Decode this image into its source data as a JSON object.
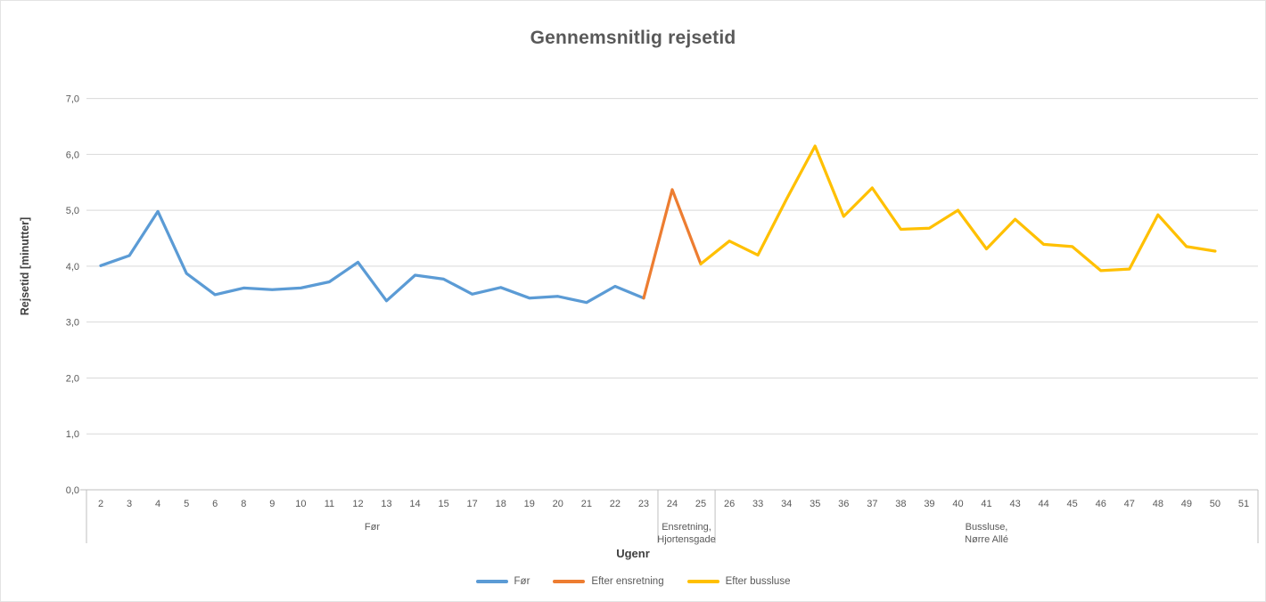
{
  "title": "Gennemsnitlig rejsetid",
  "colors": {
    "gridline": "#D9D9D9",
    "axis_line": "#BFBFBF",
    "tick_text": "#595959",
    "title_text": "#595959"
  },
  "chart_data": {
    "type": "line",
    "title": "Gennemsnitlig rejsetid",
    "xlabel": "Ugenr",
    "ylabel": "Rejsetid [minutter]",
    "ylim": [
      0,
      7
    ],
    "y_tick_step": 1,
    "y_tick_labels": [
      "0,0",
      "1,0",
      "2,0",
      "3,0",
      "4,0",
      "5,0",
      "6,0",
      "7,0"
    ],
    "grid": "horizontal",
    "legend_position": "bottom",
    "categories": [
      "2",
      "3",
      "4",
      "5",
      "6",
      "8",
      "9",
      "10",
      "11",
      "12",
      "13",
      "14",
      "15",
      "17",
      "18",
      "19",
      "20",
      "21",
      "22",
      "23",
      "24",
      "25",
      "26",
      "33",
      "34",
      "35",
      "36",
      "37",
      "38",
      "39",
      "40",
      "41",
      "43",
      "44",
      "45",
      "46",
      "47",
      "48",
      "49",
      "50",
      "51"
    ],
    "category_groups": [
      {
        "label_lines": [
          "Før"
        ],
        "from": "2",
        "to": "23"
      },
      {
        "label_lines": [
          "Ensretning,",
          "Hjortensgade"
        ],
        "from": "24",
        "to": "25"
      },
      {
        "label_lines": [
          "Bussluse,",
          "Nørre Allé"
        ],
        "from": "26",
        "to": "51"
      }
    ],
    "series": [
      {
        "name": "Før",
        "color": "#5B9BD5",
        "weeks": [
          "2",
          "3",
          "4",
          "5",
          "6",
          "8",
          "9",
          "10",
          "11",
          "12",
          "13",
          "14",
          "15",
          "17",
          "18",
          "19",
          "20",
          "21",
          "22",
          "23"
        ],
        "values": [
          4.01,
          4.19,
          4.98,
          3.87,
          3.49,
          3.61,
          3.58,
          3.61,
          3.72,
          4.07,
          3.38,
          3.84,
          3.77,
          3.5,
          3.62,
          3.43,
          3.46,
          3.35,
          3.64,
          3.43
        ]
      },
      {
        "name": "Efter ensretning",
        "color": "#ED7D31",
        "weeks": [
          "23",
          "24",
          "25"
        ],
        "values": [
          3.43,
          5.37,
          4.04
        ]
      },
      {
        "name": "Efter bussluse",
        "color": "#FFC000",
        "weeks": [
          "25",
          "26",
          "33",
          "34",
          "35",
          "36",
          "37",
          "38",
          "39",
          "40",
          "41",
          "43",
          "44",
          "45",
          "46",
          "47",
          "48",
          "49",
          "50"
        ],
        "values": [
          4.04,
          4.45,
          4.2,
          5.2,
          6.15,
          4.89,
          5.4,
          4.66,
          4.68,
          5.0,
          4.31,
          4.84,
          4.39,
          4.35,
          3.92,
          3.95,
          4.92,
          4.35,
          4.27
        ]
      }
    ]
  }
}
